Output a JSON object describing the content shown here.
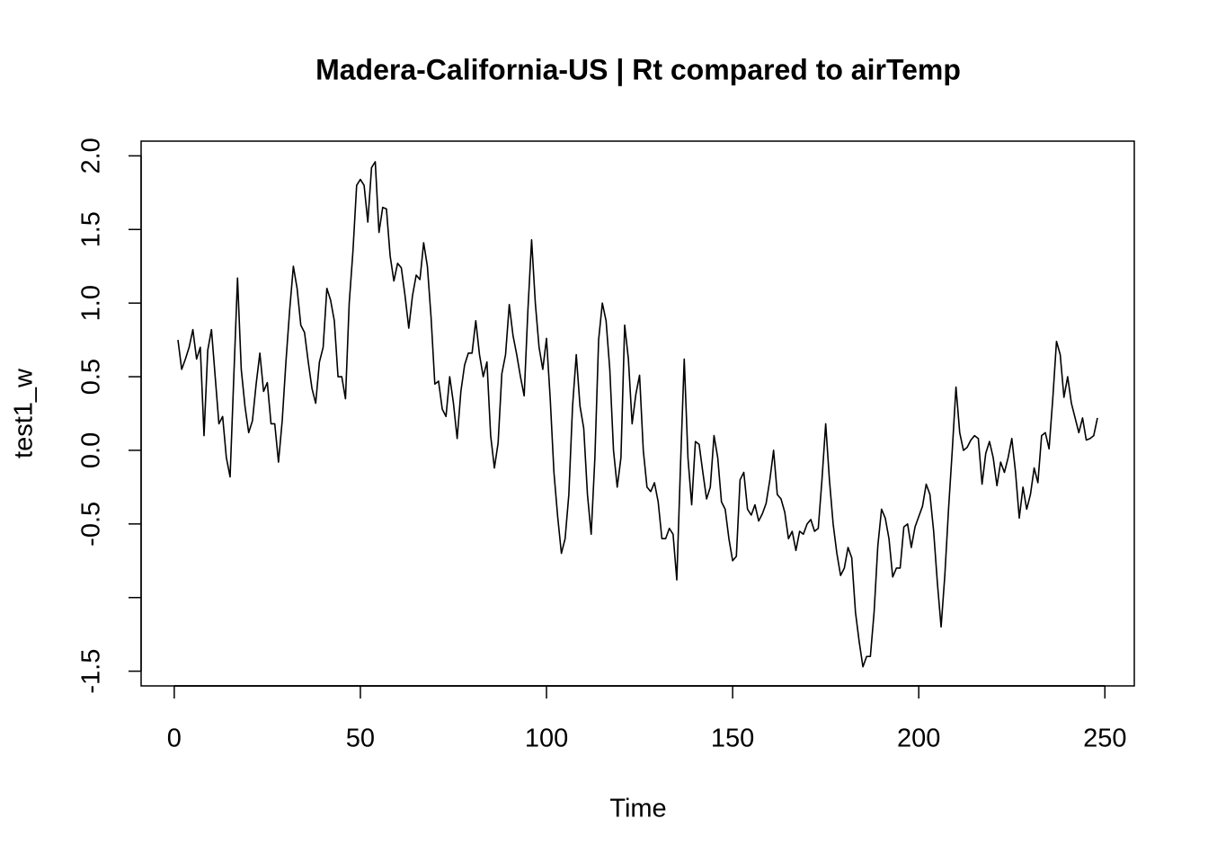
{
  "chart_data": {
    "type": "line",
    "title": "Madera-California-US | Rt compared to airTemp",
    "xlabel": "Time",
    "ylabel": "test1_w",
    "xlim": [
      -8.9,
      257.9
    ],
    "ylim": [
      -1.6,
      2.1
    ],
    "xticks": [
      0,
      50,
      100,
      150,
      200,
      250
    ],
    "yticks": [
      {
        "value": -1.5,
        "label": "-1.5"
      },
      {
        "value": -1,
        "label": null
      },
      {
        "value": -0.5,
        "label": "-0.5"
      },
      {
        "value": 0,
        "label": "0.0"
      },
      {
        "value": 0.5,
        "label": "0.5"
      },
      {
        "value": 1,
        "label": "1.0"
      },
      {
        "value": 1.5,
        "label": "1.5"
      },
      {
        "value": 2,
        "label": "2.0"
      }
    ],
    "series": [
      {
        "name": "test1_w",
        "color": "#000000",
        "x": [
          1,
          2,
          3,
          4,
          5,
          6,
          7,
          8,
          9,
          10,
          11,
          12,
          13,
          14,
          15,
          16,
          17,
          18,
          19,
          20,
          21,
          22,
          23,
          24,
          25,
          26,
          27,
          28,
          29,
          30,
          31,
          32,
          33,
          34,
          35,
          36,
          37,
          38,
          39,
          40,
          41,
          42,
          43,
          44,
          45,
          46,
          47,
          48,
          49,
          50,
          51,
          52,
          53,
          54,
          55,
          56,
          57,
          58,
          59,
          60,
          61,
          62,
          63,
          64,
          65,
          66,
          67,
          68,
          69,
          70,
          71,
          72,
          73,
          74,
          75,
          76,
          77,
          78,
          79,
          80,
          81,
          82,
          83,
          84,
          85,
          86,
          87,
          88,
          89,
          90,
          91,
          92,
          93,
          94,
          95,
          96,
          97,
          98,
          99,
          100,
          101,
          102,
          103,
          104,
          105,
          106,
          107,
          108,
          109,
          110,
          111,
          112,
          113,
          114,
          115,
          116,
          117,
          118,
          119,
          120,
          121,
          122,
          123,
          124,
          125,
          126,
          127,
          128,
          129,
          130,
          131,
          132,
          133,
          134,
          135,
          136,
          137,
          138,
          139,
          140,
          141,
          142,
          143,
          144,
          145,
          146,
          147,
          148,
          149,
          150,
          151,
          152,
          153,
          154,
          155,
          156,
          157,
          158,
          159,
          160,
          161,
          162,
          163,
          164,
          165,
          166,
          167,
          168,
          169,
          170,
          171,
          172,
          173,
          174,
          175,
          176,
          177,
          178,
          179,
          180,
          181,
          182,
          183,
          184,
          185,
          186,
          187,
          188,
          189,
          190,
          191,
          192,
          193,
          194,
          195,
          196,
          197,
          198,
          199,
          200,
          201,
          202,
          203,
          204,
          205,
          206,
          207,
          208,
          209,
          210,
          211,
          212,
          213,
          214,
          215,
          216,
          217,
          218,
          219,
          220,
          221,
          222,
          223,
          224,
          225,
          226,
          227,
          228,
          229,
          230,
          231,
          232,
          233,
          234,
          235,
          236,
          237,
          238,
          239,
          240,
          241,
          242,
          243,
          244,
          245,
          246,
          247,
          248
        ],
        "values": [
          0.75,
          0.55,
          0.62,
          0.7,
          0.82,
          0.62,
          0.7,
          0.1,
          0.68,
          0.82,
          0.5,
          0.18,
          0.23,
          -0.05,
          -0.18,
          0.5,
          1.17,
          0.55,
          0.3,
          0.12,
          0.2,
          0.45,
          0.66,
          0.4,
          0.46,
          0.18,
          0.18,
          -0.08,
          0.2,
          0.6,
          0.95,
          1.25,
          1.1,
          0.85,
          0.8,
          0.6,
          0.42,
          0.32,
          0.6,
          0.7,
          1.1,
          1.02,
          0.88,
          0.5,
          0.5,
          0.35,
          1.0,
          1.35,
          1.8,
          1.84,
          1.8,
          1.55,
          1.92,
          1.96,
          1.48,
          1.65,
          1.64,
          1.32,
          1.15,
          1.27,
          1.24,
          1.05,
          0.83,
          1.05,
          1.19,
          1.16,
          1.41,
          1.25,
          0.9,
          0.45,
          0.47,
          0.28,
          0.23,
          0.5,
          0.32,
          0.08,
          0.4,
          0.58,
          0.66,
          0.66,
          0.88,
          0.65,
          0.5,
          0.6,
          0.1,
          -0.12,
          0.05,
          0.52,
          0.65,
          0.99,
          0.78,
          0.65,
          0.5,
          0.37,
          0.95,
          1.43,
          1.0,
          0.7,
          0.55,
          0.76,
          0.35,
          -0.15,
          -0.45,
          -0.7,
          -0.6,
          -0.3,
          0.3,
          0.65,
          0.3,
          0.15,
          -0.3,
          -0.57,
          -0.05,
          0.75,
          1.0,
          0.88,
          0.55,
          0.0,
          -0.25,
          -0.05,
          0.85,
          0.62,
          0.18,
          0.38,
          0.51,
          0.0,
          -0.25,
          -0.28,
          -0.22,
          -0.35,
          -0.6,
          -0.6,
          -0.53,
          -0.57,
          -0.88,
          -0.1,
          0.62,
          -0.05,
          -0.37,
          0.06,
          0.04,
          -0.15,
          -0.33,
          -0.25,
          0.1,
          -0.05,
          -0.35,
          -0.4,
          -0.6,
          -0.75,
          -0.72,
          -0.2,
          -0.15,
          -0.4,
          -0.44,
          -0.37,
          -0.48,
          -0.43,
          -0.36,
          -0.2,
          0.0,
          -0.3,
          -0.33,
          -0.42,
          -0.6,
          -0.55,
          -0.68,
          -0.55,
          -0.57,
          -0.5,
          -0.47,
          -0.55,
          -0.53,
          -0.2,
          0.18,
          -0.2,
          -0.5,
          -0.7,
          -0.85,
          -0.8,
          -0.66,
          -0.73,
          -1.1,
          -1.3,
          -1.47,
          -1.4,
          -1.4,
          -1.1,
          -0.65,
          -0.4,
          -0.46,
          -0.6,
          -0.86,
          -0.8,
          -0.8,
          -0.52,
          -0.5,
          -0.66,
          -0.52,
          -0.45,
          -0.38,
          -0.23,
          -0.3,
          -0.55,
          -0.9,
          -1.2,
          -0.85,
          -0.4,
          0.0,
          0.43,
          0.12,
          0.0,
          0.02,
          0.07,
          0.1,
          0.08,
          -0.23,
          -0.02,
          0.06,
          -0.05,
          -0.24,
          -0.08,
          -0.15,
          -0.05,
          0.08,
          -0.15,
          -0.46,
          -0.25,
          -0.4,
          -0.3,
          -0.12,
          -0.22,
          0.1,
          0.12,
          0.01,
          0.35,
          0.74,
          0.65,
          0.36,
          0.5,
          0.32,
          0.22,
          0.12,
          0.22,
          0.07,
          0.08,
          0.1,
          0.22
        ]
      }
    ]
  }
}
